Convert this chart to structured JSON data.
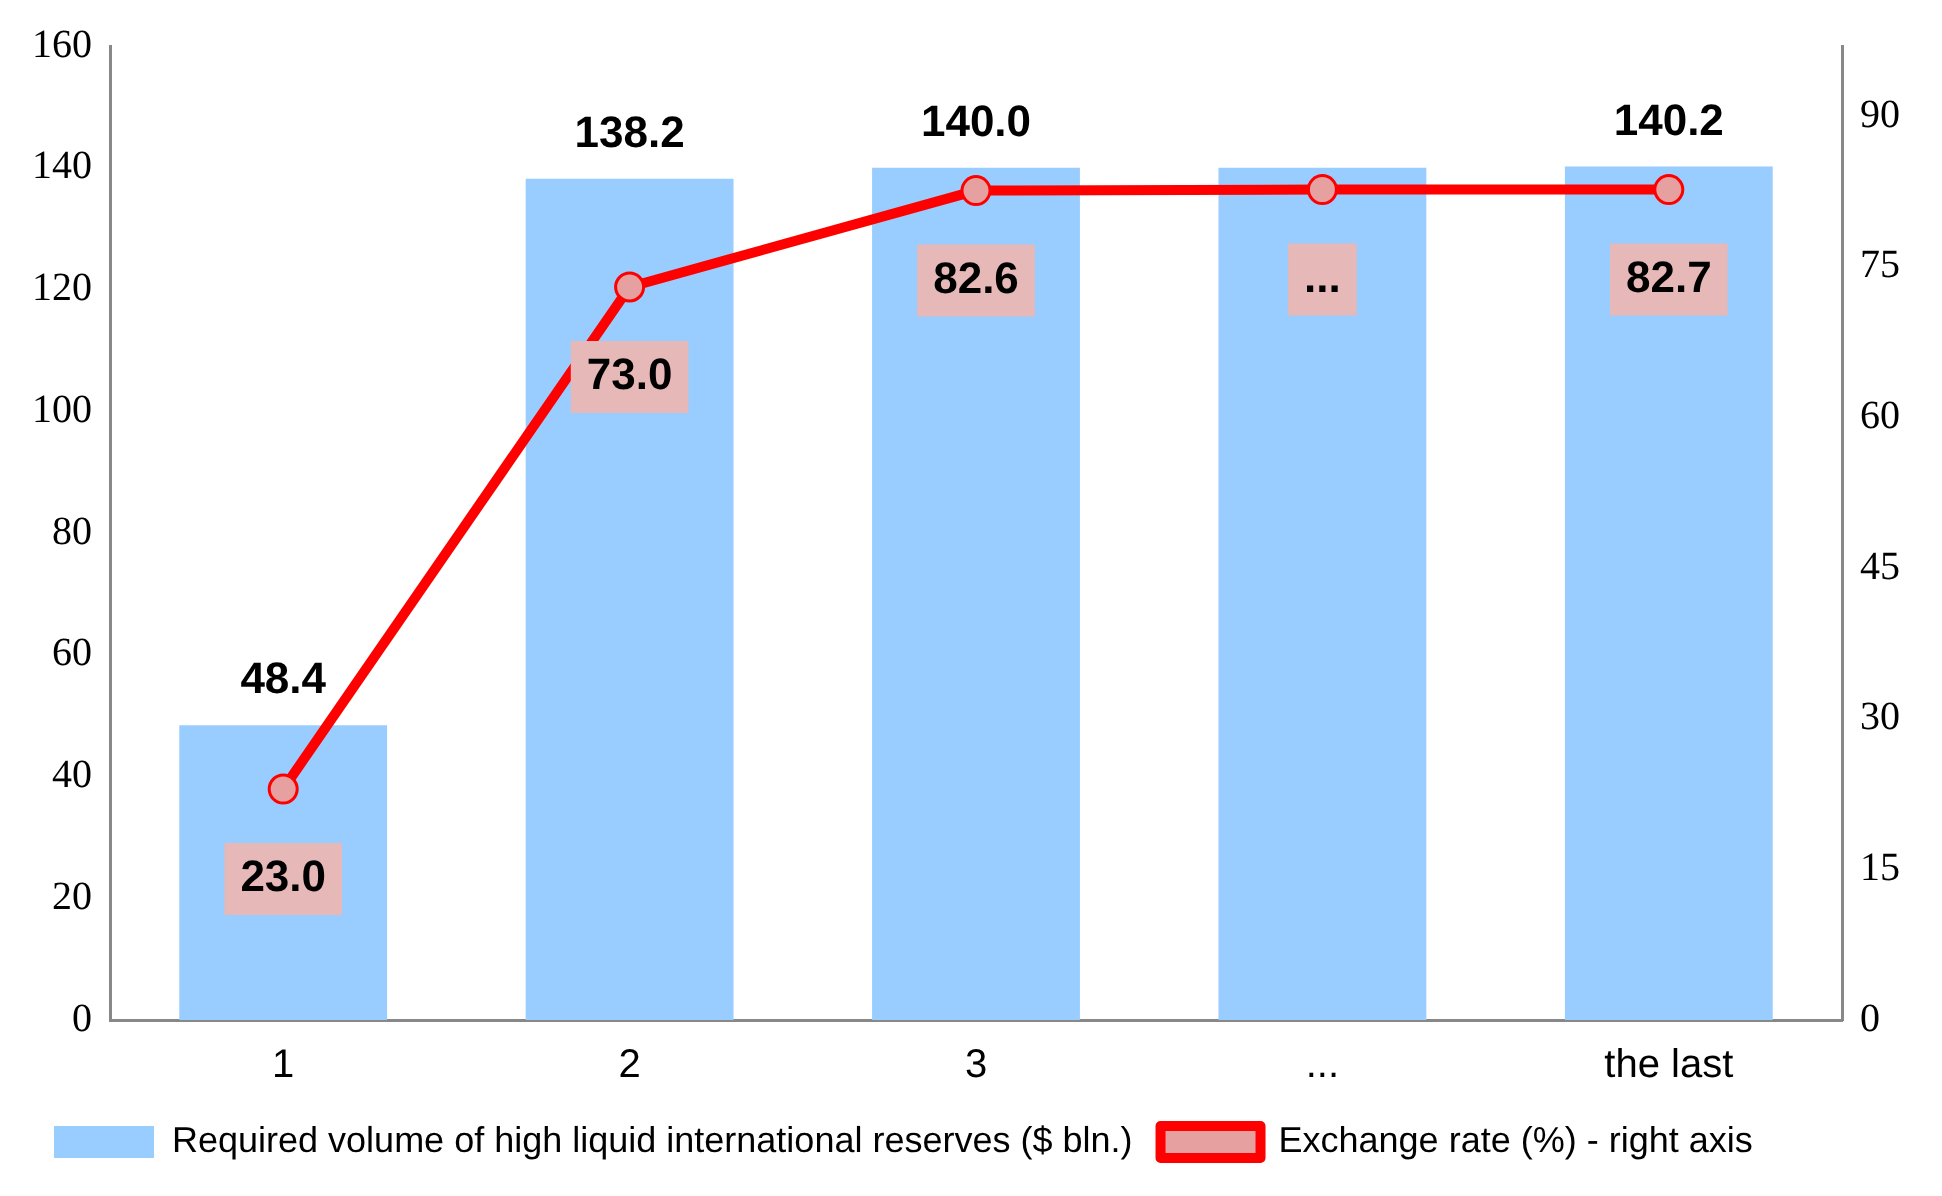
{
  "chart_data": {
    "type": "bar",
    "categories": [
      "1",
      "2",
      "3",
      "...",
      "the last"
    ],
    "series": [
      {
        "name": "Required volume of high liquid international reserves ($ bln.)",
        "color": "#99ccff",
        "values": [
          48.4,
          138.2,
          140.0,
          140.0,
          140.2
        ],
        "value_labels": [
          "48.4",
          "138.2",
          "140.0",
          null,
          "140.2"
        ]
      },
      {
        "name": "Exchange rate (%) - right axis",
        "type": "line",
        "axis": "y2",
        "color": "#ff0000",
        "values": [
          23.0,
          73.0,
          82.6,
          82.7,
          82.7
        ],
        "value_labels": [
          "23.0",
          "73.0",
          "82.6",
          "...",
          "82.7"
        ]
      }
    ],
    "ylim": [
      0,
      160
    ],
    "yticks": [
      0,
      20,
      40,
      60,
      80,
      100,
      120,
      140,
      160
    ],
    "y2lim": [
      0,
      97
    ],
    "y2ticks": [
      0,
      15,
      30,
      45,
      60,
      75,
      90
    ],
    "grid": false,
    "legend": "bottom",
    "marker": "circle",
    "line_style": "solid"
  }
}
